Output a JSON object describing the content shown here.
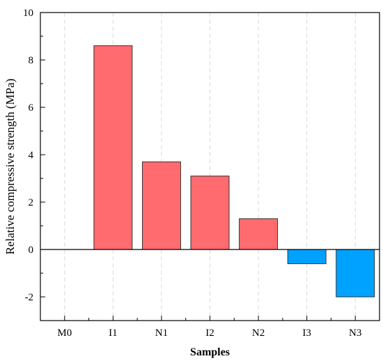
{
  "chart_data": {
    "type": "bar",
    "title": "",
    "xlabel": "Samples",
    "ylabel": "Relative compressive strength (MPa)",
    "categories": [
      "M0",
      "I1",
      "N1",
      "I2",
      "N2",
      "I3",
      "N3"
    ],
    "values": [
      0,
      8.6,
      3.7,
      3.1,
      1.3,
      -0.6,
      -2.0
    ],
    "ylim": [
      -3,
      10
    ],
    "yticks": [
      -2,
      0,
      2,
      4,
      6,
      8,
      10
    ],
    "colors": {
      "positive": "#FF6B6E",
      "negative": "#00A2FF",
      "edge": "#333333"
    },
    "grid": "vertical dashed at categories",
    "zero_line": true
  }
}
